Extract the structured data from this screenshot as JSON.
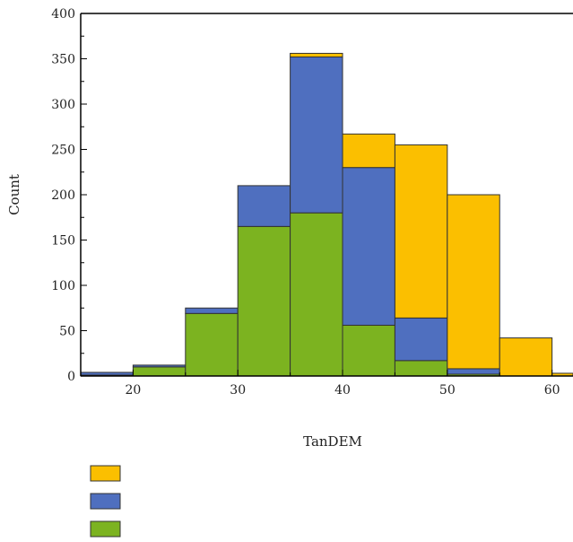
{
  "chart_data": {
    "type": "bar",
    "stacked": true,
    "xlabel": "TanDEM",
    "ylabel": "Count",
    "xlim": [
      15,
      62
    ],
    "ylim": [
      0,
      400
    ],
    "x_ticks": [
      20,
      30,
      40,
      50,
      60
    ],
    "y_ticks": [
      0,
      50,
      100,
      150,
      200,
      250,
      300,
      350,
      400
    ],
    "bin_width": 5,
    "bin_starts": [
      15,
      20,
      25,
      30,
      35,
      40,
      45,
      50,
      55,
      60
    ],
    "series": [
      {
        "color": "#7cb320",
        "values": [
          1,
          10,
          69,
          165,
          180,
          56,
          17,
          2,
          0,
          0
        ]
      },
      {
        "color": "#4f6fbf",
        "values": [
          3,
          2,
          6,
          45,
          172,
          174,
          47,
          6,
          0,
          0
        ]
      },
      {
        "color": "#fbbf00",
        "values": [
          0,
          0,
          0,
          0,
          4,
          37,
          191,
          192,
          42,
          3
        ]
      }
    ],
    "legend": {
      "placement": "bottom-left",
      "entries": [
        {
          "color": "#fbbf00"
        },
        {
          "color": "#4f6fbf"
        },
        {
          "color": "#7cb320"
        }
      ]
    },
    "grid": false
  }
}
